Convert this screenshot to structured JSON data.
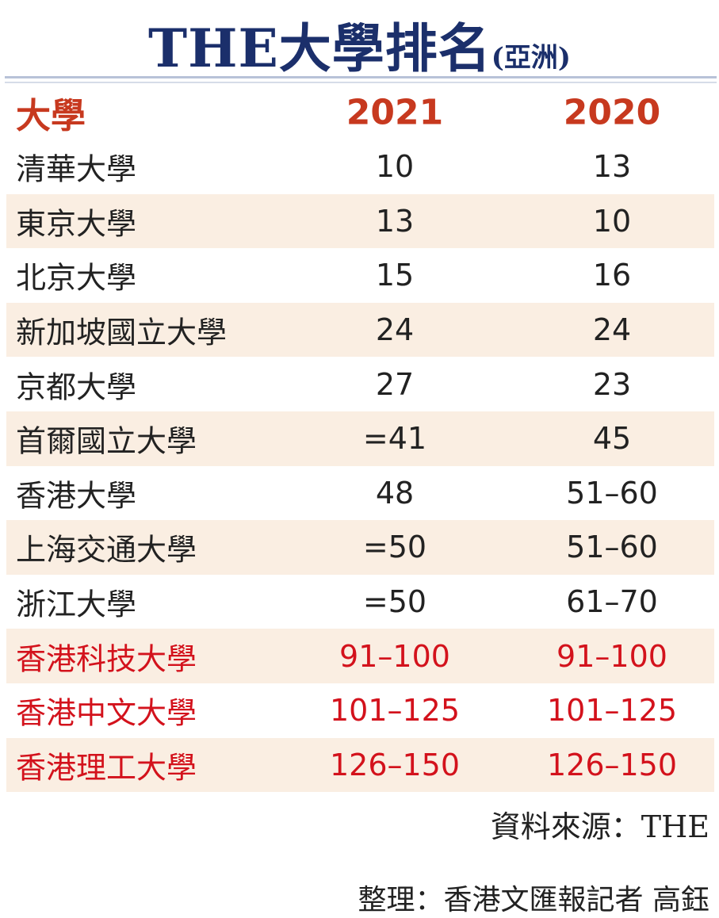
{
  "header": {
    "title": "THE大學排名",
    "subtitle": "(亞洲)"
  },
  "table": {
    "columns": [
      "大學",
      "2021",
      "2020"
    ],
    "rows": [
      [
        "清華大學",
        "10",
        "13"
      ],
      [
        "東京大學",
        "13",
        "10"
      ],
      [
        "北京大學",
        "15",
        "16"
      ],
      [
        "新加坡國立大學",
        "24",
        "24"
      ],
      [
        "京都大學",
        "27",
        "23"
      ],
      [
        "首爾國立大學",
        "=41",
        "45"
      ],
      [
        "香港大學",
        "48",
        "51–60"
      ],
      [
        "上海交通大學",
        "=50",
        "51–60"
      ],
      [
        "浙江大學",
        "=50",
        "61–70"
      ],
      [
        "香港科技大學",
        "91–100",
        "91–100"
      ],
      [
        "香港中文大學",
        "101–125",
        "101–125"
      ],
      [
        "香港理工大學",
        "126–150",
        "126–150"
      ]
    ]
  },
  "footer": {
    "source": "資料來源：THE",
    "credit": "整理：香港文匯報記者 高鈺"
  }
}
